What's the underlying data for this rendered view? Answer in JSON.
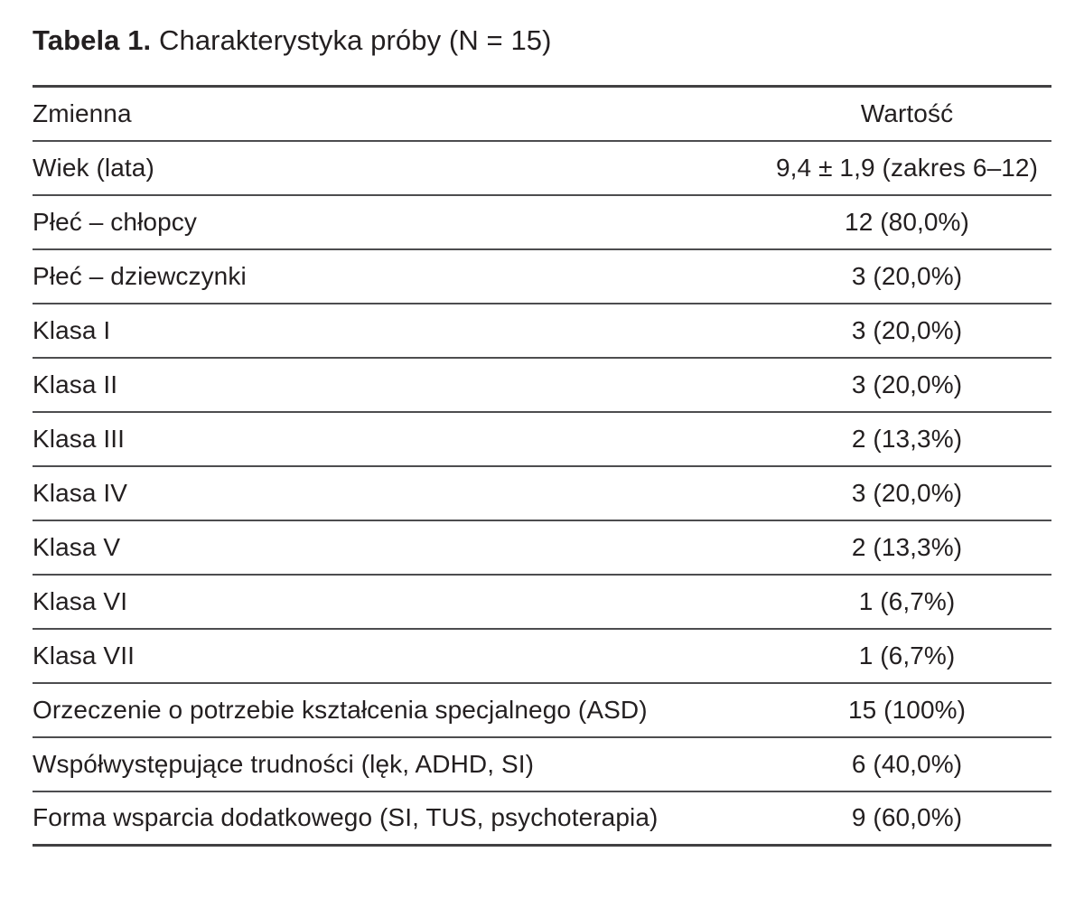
{
  "table": {
    "title_label": "Tabela 1.",
    "title_text": " Charakterystyka próby (N = 15)",
    "columns": [
      "Zmienna",
      "Wartość"
    ],
    "rows": [
      {
        "variable": "Wiek (lata)",
        "value": "9,4 ± 1,9 (zakres 6–12)"
      },
      {
        "variable": "Płeć – chłopcy",
        "value": "12 (80,0%)"
      },
      {
        "variable": "Płeć – dziewczynki",
        "value": "3 (20,0%)"
      },
      {
        "variable": "Klasa I",
        "value": "3 (20,0%)"
      },
      {
        "variable": "Klasa II",
        "value": "3 (20,0%)"
      },
      {
        "variable": "Klasa III",
        "value": "2 (13,3%)"
      },
      {
        "variable": "Klasa IV",
        "value": "3 (20,0%)"
      },
      {
        "variable": "Klasa V",
        "value": "2 (13,3%)"
      },
      {
        "variable": "Klasa VI",
        "value": "1 (6,7%)"
      },
      {
        "variable": "Klasa VII",
        "value": "1 (6,7%)"
      },
      {
        "variable": "Orzeczenie o potrzebie kształcenia specjalnego (ASD)",
        "value": "15 (100%)"
      },
      {
        "variable": "Współwystępujące trudności (lęk, ADHD, SI)",
        "value": "6 (40,0%)"
      },
      {
        "variable": "Forma wsparcia dodatkowego (SI, TUS, psychoterapia)",
        "value": "9 (60,0%)"
      }
    ],
    "colors": {
      "text": "#231f20",
      "outer_rule": "#414042",
      "inner_rule": "#4d4d4f",
      "background": "#ffffff"
    }
  }
}
